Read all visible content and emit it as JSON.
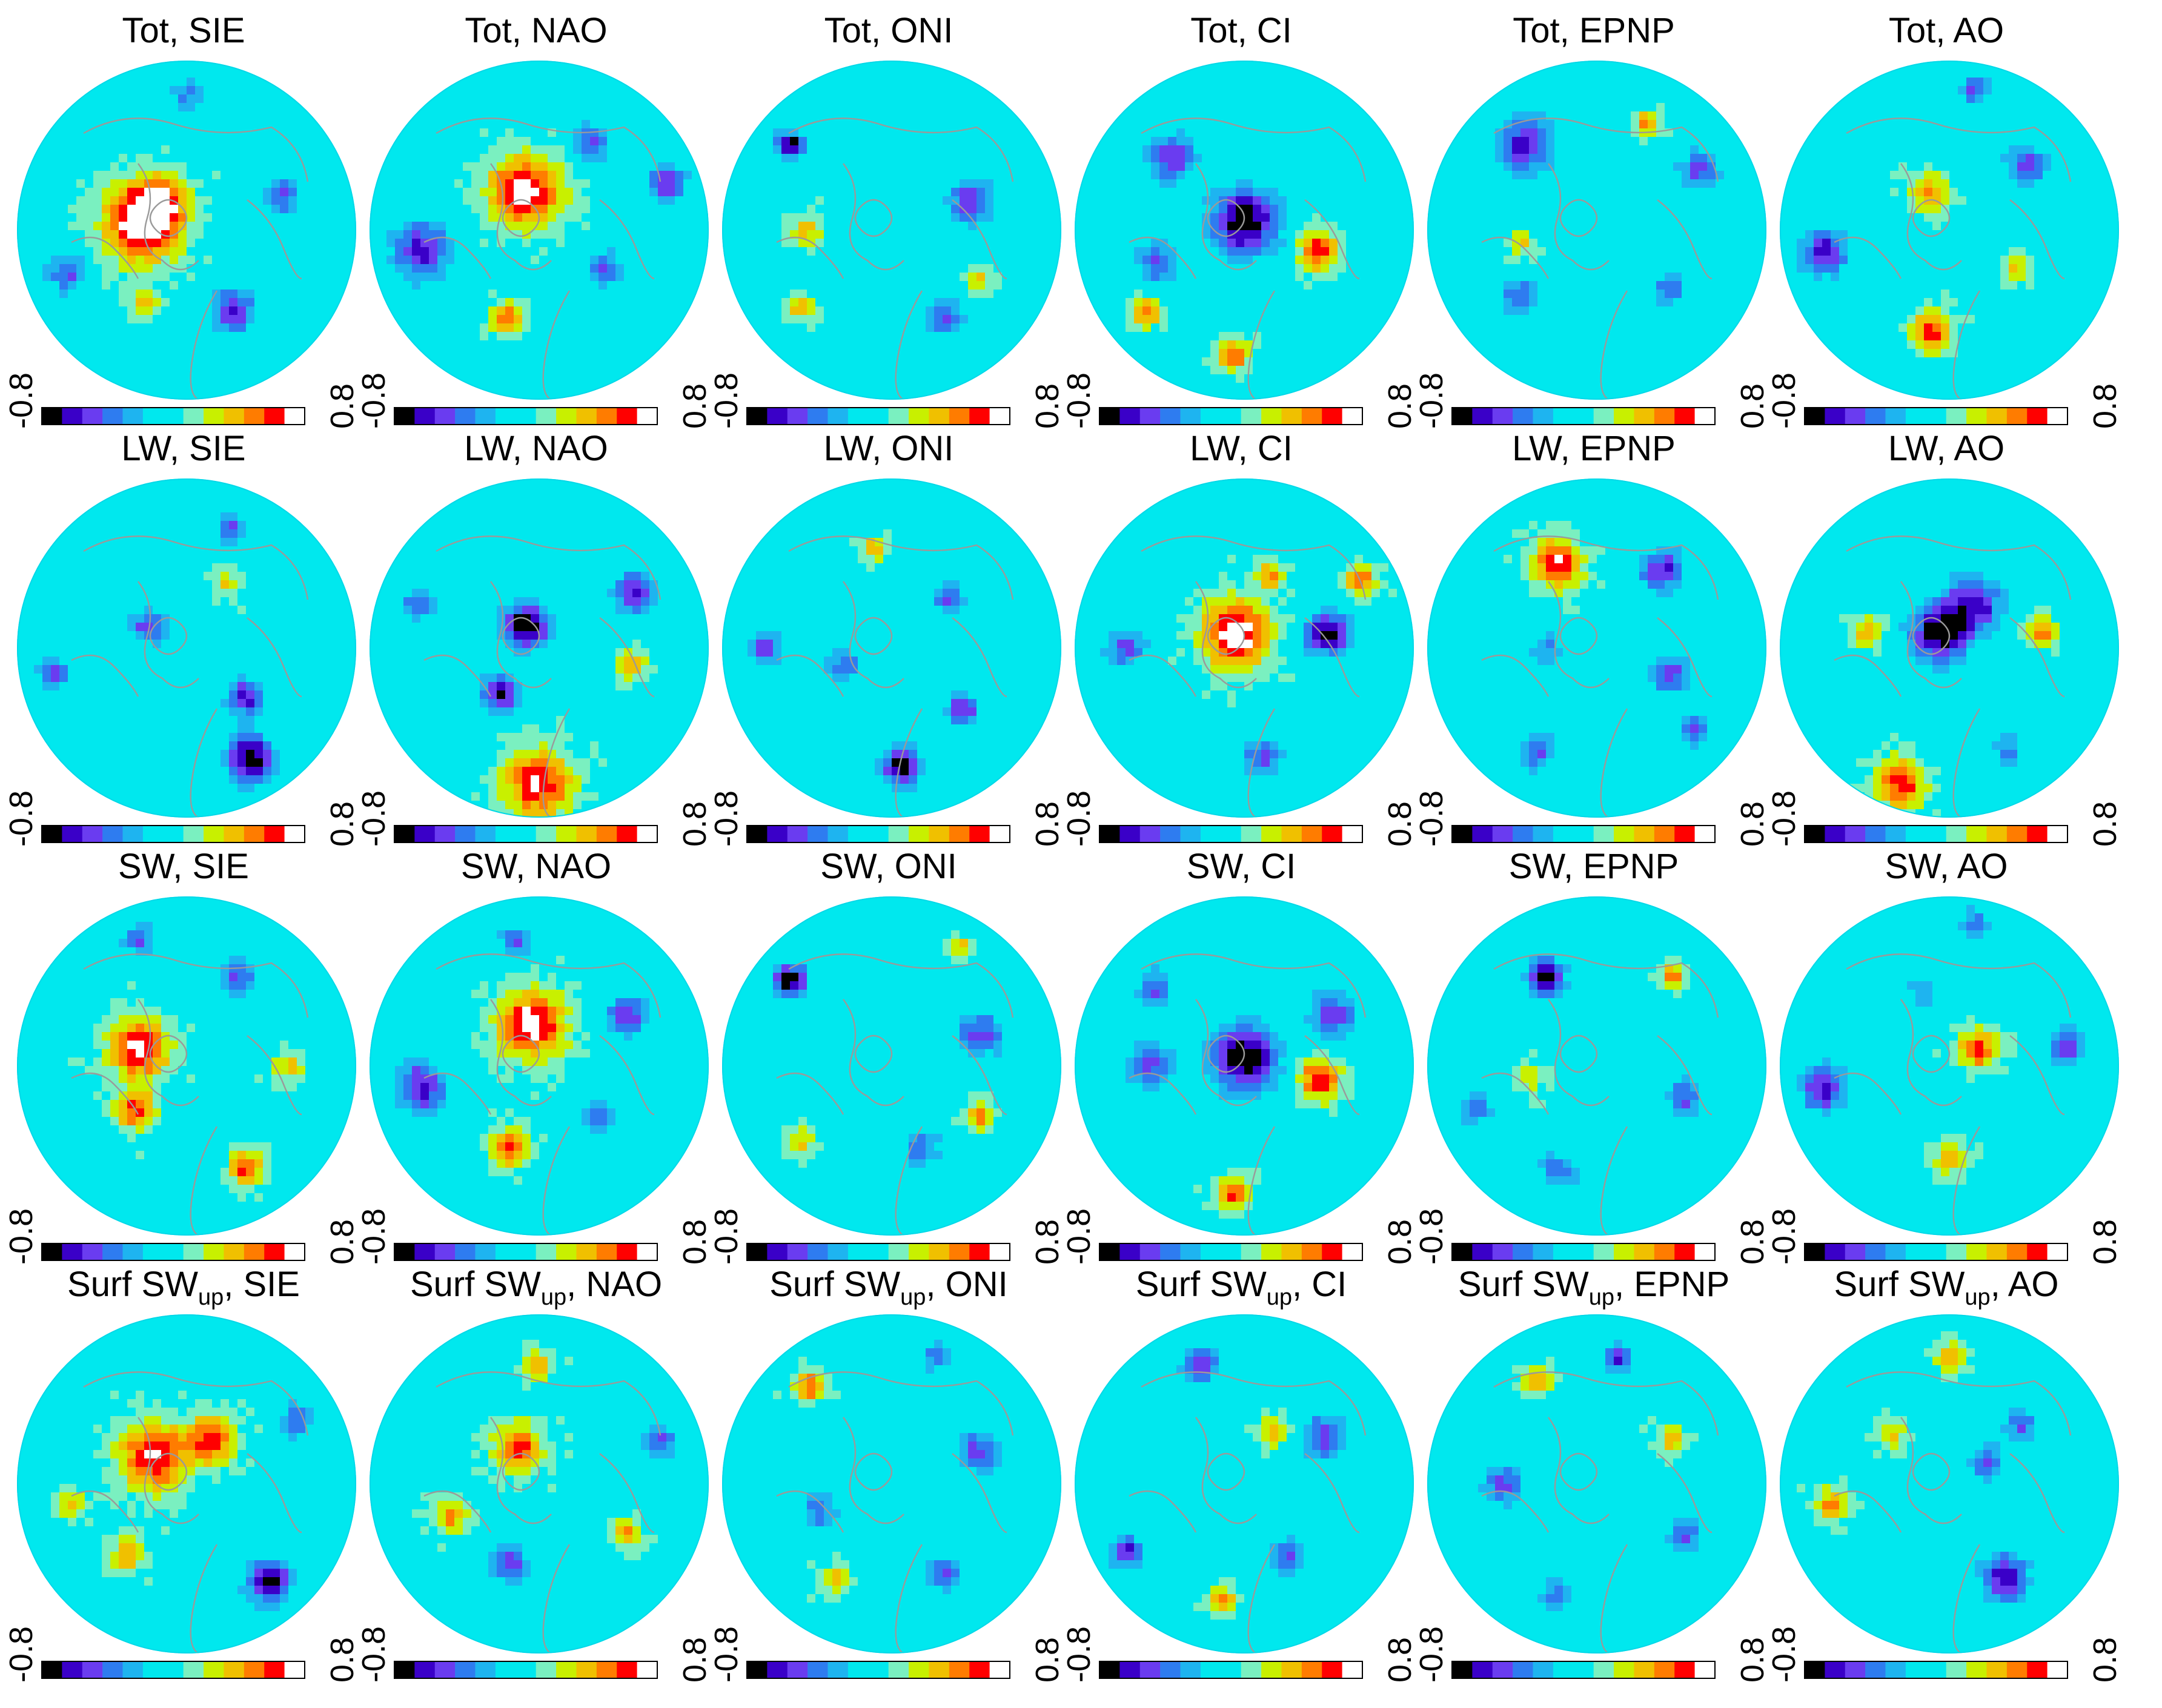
{
  "chart_data": {
    "type": "heatmap",
    "projection": "north-polar-stereographic",
    "layout": {
      "rows": 4,
      "cols": 6
    },
    "row_labels": [
      {
        "name": "Tot",
        "sub": ""
      },
      {
        "name": "LW",
        "sub": ""
      },
      {
        "name": "SW",
        "sub": ""
      },
      {
        "name": "Surf SW",
        "sub": "up"
      }
    ],
    "col_labels": [
      "SIE",
      "NAO",
      "ONI",
      "CI",
      "EPNP",
      "AO"
    ],
    "colorbar": {
      "min_label": "-0.8",
      "max_label": "0.8",
      "range": [
        -0.8,
        0.8
      ],
      "colors": [
        "#000000",
        "#3a00c8",
        "#6a3cf0",
        "#2e7cf0",
        "#1eb4f0",
        "#00e8ee",
        "#00e8ee",
        "#7af0c0",
        "#c8f000",
        "#f0c000",
        "#ff7c00",
        "#ff0000",
        "#ffffff"
      ]
    },
    "coastline_color": "#9a9a9a",
    "panel_fields": {
      "Tot": {
        "SIE": [
          {
            "r": 0.28,
            "a": 175,
            "v": 0.7,
            "s": 0.16
          },
          {
            "r": 0.22,
            "a": 140,
            "v": 0.6,
            "s": 0.12
          },
          {
            "r": 0.55,
            "a": 300,
            "v": -0.55,
            "s": 0.1
          },
          {
            "r": 0.75,
            "a": 200,
            "v": -0.5,
            "s": 0.08
          },
          {
            "r": 0.6,
            "a": 20,
            "v": -0.45,
            "s": 0.08
          },
          {
            "r": 0.5,
            "a": 240,
            "v": 0.4,
            "s": 0.06
          },
          {
            "r": 0.8,
            "a": 90,
            "v": -0.35,
            "s": 0.07
          }
        ],
        "NAO": [
          {
            "r": 0.25,
            "a": 110,
            "v": 0.75,
            "s": 0.15
          },
          {
            "r": 0.55,
            "a": 250,
            "v": 0.5,
            "s": 0.07
          },
          {
            "r": 0.7,
            "a": 190,
            "v": -0.6,
            "s": 0.12
          },
          {
            "r": 0.8,
            "a": 20,
            "v": -0.55,
            "s": 0.08
          },
          {
            "r": 0.45,
            "a": 330,
            "v": -0.45,
            "s": 0.08
          },
          {
            "r": 0.6,
            "a": 60,
            "v": -0.5,
            "s": 0.08
          }
        ],
        "ONI": [
          {
            "r": 0.78,
            "a": 140,
            "v": -0.8,
            "s": 0.06
          },
          {
            "r": 0.5,
            "a": 20,
            "v": -0.5,
            "s": 0.1
          },
          {
            "r": 0.6,
            "a": 300,
            "v": -0.45,
            "s": 0.08
          },
          {
            "r": 0.7,
            "a": 220,
            "v": 0.4,
            "s": 0.06
          },
          {
            "r": 0.5,
            "a": 180,
            "v": 0.35,
            "s": 0.07
          },
          {
            "r": 0.6,
            "a": 330,
            "v": 0.35,
            "s": 0.05
          }
        ],
        "CI": [
          {
            "r": 0.05,
            "a": 90,
            "v": -0.8,
            "s": 0.14
          },
          {
            "r": 0.45,
            "a": 345,
            "v": 0.65,
            "s": 0.08
          },
          {
            "r": 0.75,
            "a": 220,
            "v": 0.55,
            "s": 0.06
          },
          {
            "r": 0.75,
            "a": 265,
            "v": 0.5,
            "s": 0.07
          },
          {
            "r": 0.6,
            "a": 135,
            "v": -0.55,
            "s": 0.1
          },
          {
            "r": 0.55,
            "a": 200,
            "v": -0.45,
            "s": 0.09
          }
        ],
        "EPNP": [
          {
            "r": 0.65,
            "a": 130,
            "v": -0.6,
            "s": 0.12
          },
          {
            "r": 0.7,
            "a": 65,
            "v": 0.5,
            "s": 0.05
          },
          {
            "r": 0.7,
            "a": 30,
            "v": -0.5,
            "s": 0.09
          },
          {
            "r": 0.6,
            "a": 220,
            "v": -0.45,
            "s": 0.08
          },
          {
            "r": 0.55,
            "a": 320,
            "v": -0.4,
            "s": 0.08
          },
          {
            "r": 0.45,
            "a": 190,
            "v": 0.3,
            "s": 0.06
          }
        ],
        "AO": [
          {
            "r": 0.6,
            "a": 260,
            "v": 0.65,
            "s": 0.08
          },
          {
            "r": 0.25,
            "a": 120,
            "v": 0.45,
            "s": 0.08
          },
          {
            "r": 0.75,
            "a": 190,
            "v": -0.6,
            "s": 0.1
          },
          {
            "r": 0.6,
            "a": 40,
            "v": -0.5,
            "s": 0.09
          },
          {
            "r": 0.85,
            "a": 80,
            "v": -0.5,
            "s": 0.06
          },
          {
            "r": 0.45,
            "a": 330,
            "v": 0.35,
            "s": 0.06
          }
        ]
      },
      "LW": {
        "SIE": [
          {
            "r": 0.75,
            "a": 300,
            "v": -0.8,
            "s": 0.1
          },
          {
            "r": 0.45,
            "a": 320,
            "v": -0.6,
            "s": 0.08
          },
          {
            "r": 0.25,
            "a": 150,
            "v": -0.5,
            "s": 0.08
          },
          {
            "r": 0.75,
            "a": 70,
            "v": -0.5,
            "s": 0.06
          },
          {
            "r": 0.8,
            "a": 190,
            "v": -0.45,
            "s": 0.07
          },
          {
            "r": 0.45,
            "a": 60,
            "v": 0.3,
            "s": 0.06
          }
        ],
        "NAO": [
          {
            "r": 0.15,
            "a": 120,
            "v": -0.8,
            "s": 0.1
          },
          {
            "r": 0.35,
            "a": 230,
            "v": -0.7,
            "s": 0.08
          },
          {
            "r": 0.8,
            "a": 270,
            "v": 0.7,
            "s": 0.14
          },
          {
            "r": 0.65,
            "a": 30,
            "v": -0.6,
            "s": 0.09
          },
          {
            "r": 0.55,
            "a": 350,
            "v": 0.45,
            "s": 0.06
          },
          {
            "r": 0.75,
            "a": 160,
            "v": -0.45,
            "s": 0.07
          }
        ],
        "ONI": [
          {
            "r": 0.7,
            "a": 275,
            "v": -0.8,
            "s": 0.08
          },
          {
            "r": 0.55,
            "a": 320,
            "v": -0.6,
            "s": 0.07
          },
          {
            "r": 0.6,
            "a": 100,
            "v": 0.5,
            "s": 0.05
          },
          {
            "r": 0.75,
            "a": 180,
            "v": -0.5,
            "s": 0.07
          },
          {
            "r": 0.45,
            "a": 40,
            "v": -0.45,
            "s": 0.07
          },
          {
            "r": 0.3,
            "a": 200,
            "v": -0.4,
            "s": 0.08
          }
        ],
        "CI": [
          {
            "r": 0.1,
            "a": 120,
            "v": 0.8,
            "s": 0.14
          },
          {
            "r": 0.5,
            "a": 10,
            "v": -0.8,
            "s": 0.09
          },
          {
            "r": 0.8,
            "a": 30,
            "v": 0.6,
            "s": 0.06
          },
          {
            "r": 0.65,
            "a": 280,
            "v": -0.5,
            "s": 0.08
          },
          {
            "r": 0.7,
            "a": 180,
            "v": -0.5,
            "s": 0.08
          },
          {
            "r": 0.45,
            "a": 70,
            "v": 0.45,
            "s": 0.06
          }
        ],
        "EPNP": [
          {
            "r": 0.55,
            "a": 115,
            "v": 0.75,
            "s": 0.1
          },
          {
            "r": 0.6,
            "a": 50,
            "v": -0.6,
            "s": 0.09
          },
          {
            "r": 0.45,
            "a": 340,
            "v": -0.5,
            "s": 0.08
          },
          {
            "r": 0.7,
            "a": 240,
            "v": -0.45,
            "s": 0.08
          },
          {
            "r": 0.75,
            "a": 320,
            "v": -0.45,
            "s": 0.07
          },
          {
            "r": 0.3,
            "a": 180,
            "v": -0.35,
            "s": 0.07
          }
        ],
        "AO": [
          {
            "r": 0.1,
            "a": 120,
            "v": -0.8,
            "s": 0.12
          },
          {
            "r": 0.3,
            "a": 60,
            "v": -0.6,
            "s": 0.12
          },
          {
            "r": 0.85,
            "a": 250,
            "v": 0.65,
            "s": 0.1
          },
          {
            "r": 0.55,
            "a": 10,
            "v": 0.5,
            "s": 0.06
          },
          {
            "r": 0.5,
            "a": 170,
            "v": 0.45,
            "s": 0.06
          },
          {
            "r": 0.7,
            "a": 300,
            "v": -0.4,
            "s": 0.07
          }
        ]
      },
      "SW": {
        "SIE": [
          {
            "r": 0.3,
            "a": 160,
            "v": 0.75,
            "s": 0.12
          },
          {
            "r": 0.4,
            "a": 220,
            "v": 0.6,
            "s": 0.08
          },
          {
            "r": 0.7,
            "a": 300,
            "v": 0.6,
            "s": 0.07
          },
          {
            "r": 0.6,
            "a": 60,
            "v": -0.5,
            "s": 0.08
          },
          {
            "r": 0.8,
            "a": 110,
            "v": -0.45,
            "s": 0.07
          },
          {
            "r": 0.6,
            "a": 0,
            "v": 0.4,
            "s": 0.06
          }
        ],
        "NAO": [
          {
            "r": 0.25,
            "a": 100,
            "v": 0.75,
            "s": 0.14
          },
          {
            "r": 0.5,
            "a": 250,
            "v": 0.6,
            "s": 0.08
          },
          {
            "r": 0.7,
            "a": 190,
            "v": -0.6,
            "s": 0.11
          },
          {
            "r": 0.6,
            "a": 30,
            "v": -0.55,
            "s": 0.09
          },
          {
            "r": 0.45,
            "a": 320,
            "v": -0.4,
            "s": 0.07
          },
          {
            "r": 0.75,
            "a": 100,
            "v": -0.45,
            "s": 0.07
          }
        ],
        "ONI": [
          {
            "r": 0.78,
            "a": 140,
            "v": -0.8,
            "s": 0.07
          },
          {
            "r": 0.55,
            "a": 20,
            "v": -0.5,
            "s": 0.1
          },
          {
            "r": 0.6,
            "a": 330,
            "v": 0.5,
            "s": 0.06
          },
          {
            "r": 0.5,
            "a": 290,
            "v": -0.4,
            "s": 0.08
          },
          {
            "r": 0.7,
            "a": 220,
            "v": 0.35,
            "s": 0.06
          },
          {
            "r": 0.8,
            "a": 60,
            "v": 0.4,
            "s": 0.05
          }
        ],
        "CI": [
          {
            "r": 0.05,
            "a": 90,
            "v": -0.8,
            "s": 0.14
          },
          {
            "r": 0.45,
            "a": 350,
            "v": 0.65,
            "s": 0.09
          },
          {
            "r": 0.75,
            "a": 265,
            "v": 0.55,
            "s": 0.07
          },
          {
            "r": 0.6,
            "a": 30,
            "v": -0.5,
            "s": 0.1
          },
          {
            "r": 0.55,
            "a": 180,
            "v": -0.5,
            "s": 0.1
          },
          {
            "r": 0.7,
            "a": 140,
            "v": -0.45,
            "s": 0.08
          }
        ],
        "EPNP": [
          {
            "r": 0.6,
            "a": 120,
            "v": -0.8,
            "s": 0.08
          },
          {
            "r": 0.7,
            "a": 50,
            "v": 0.5,
            "s": 0.05
          },
          {
            "r": 0.55,
            "a": 340,
            "v": -0.45,
            "s": 0.08
          },
          {
            "r": 0.65,
            "a": 250,
            "v": -0.4,
            "s": 0.08
          },
          {
            "r": 0.75,
            "a": 200,
            "v": -0.4,
            "s": 0.07
          },
          {
            "r": 0.4,
            "a": 190,
            "v": 0.3,
            "s": 0.06
          }
        ],
        "AO": [
          {
            "r": 0.2,
            "a": 30,
            "v": 0.6,
            "s": 0.08
          },
          {
            "r": 0.55,
            "a": 270,
            "v": 0.45,
            "s": 0.07
          },
          {
            "r": 0.75,
            "a": 190,
            "v": -0.6,
            "s": 0.1
          },
          {
            "r": 0.7,
            "a": 10,
            "v": -0.5,
            "s": 0.08
          },
          {
            "r": 0.85,
            "a": 80,
            "v": -0.45,
            "s": 0.06
          },
          {
            "r": 0.45,
            "a": 110,
            "v": -0.35,
            "s": 0.07
          }
        ]
      },
      "Surf SW_up": {
        "SIE": [
          {
            "r": 0.25,
            "a": 140,
            "v": 0.7,
            "s": 0.14
          },
          {
            "r": 0.3,
            "a": 60,
            "v": 0.6,
            "s": 0.1
          },
          {
            "r": 0.75,
            "a": 310,
            "v": -0.75,
            "s": 0.09
          },
          {
            "r": 0.55,
            "a": 230,
            "v": 0.5,
            "s": 0.07
          },
          {
            "r": 0.7,
            "a": 190,
            "v": 0.4,
            "s": 0.06
          },
          {
            "r": 0.75,
            "a": 30,
            "v": -0.4,
            "s": 0.07
          }
        ],
        "NAO": [
          {
            "r": 0.25,
            "a": 120,
            "v": 0.6,
            "s": 0.1
          },
          {
            "r": 0.5,
            "a": 250,
            "v": -0.5,
            "s": 0.08
          },
          {
            "r": 0.6,
            "a": 330,
            "v": 0.45,
            "s": 0.06
          },
          {
            "r": 0.55,
            "a": 200,
            "v": 0.45,
            "s": 0.07
          },
          {
            "r": 0.75,
            "a": 20,
            "v": -0.45,
            "s": 0.07
          },
          {
            "r": 0.7,
            "a": 90,
            "v": 0.4,
            "s": 0.06
          }
        ],
        "ONI": [
          {
            "r": 0.75,
            "a": 130,
            "v": 0.55,
            "s": 0.06
          },
          {
            "r": 0.55,
            "a": 20,
            "v": -0.5,
            "s": 0.09
          },
          {
            "r": 0.6,
            "a": 300,
            "v": -0.45,
            "s": 0.08
          },
          {
            "r": 0.45,
            "a": 200,
            "v": -0.4,
            "s": 0.08
          },
          {
            "r": 0.65,
            "a": 240,
            "v": 0.35,
            "s": 0.06
          },
          {
            "r": 0.8,
            "a": 70,
            "v": -0.4,
            "s": 0.06
          }
        ],
        "CI": [
          {
            "r": 0.75,
            "a": 110,
            "v": -0.55,
            "s": 0.08
          },
          {
            "r": 0.55,
            "a": 30,
            "v": -0.5,
            "s": 0.1
          },
          {
            "r": 0.8,
            "a": 210,
            "v": -0.6,
            "s": 0.07
          },
          {
            "r": 0.5,
            "a": 300,
            "v": -0.45,
            "s": 0.08
          },
          {
            "r": 0.7,
            "a": 260,
            "v": 0.45,
            "s": 0.06
          },
          {
            "r": 0.35,
            "a": 60,
            "v": 0.4,
            "s": 0.06
          }
        ],
        "EPNP": [
          {
            "r": 0.75,
            "a": 80,
            "v": -0.55,
            "s": 0.06
          },
          {
            "r": 0.55,
            "a": 180,
            "v": -0.5,
            "s": 0.08
          },
          {
            "r": 0.6,
            "a": 330,
            "v": -0.45,
            "s": 0.08
          },
          {
            "r": 0.7,
            "a": 120,
            "v": 0.45,
            "s": 0.06
          },
          {
            "r": 0.5,
            "a": 30,
            "v": 0.4,
            "s": 0.06
          },
          {
            "r": 0.7,
            "a": 250,
            "v": -0.4,
            "s": 0.07
          }
        ],
        "AO": [
          {
            "r": 0.65,
            "a": 300,
            "v": -0.65,
            "s": 0.1
          },
          {
            "r": 0.25,
            "a": 30,
            "v": -0.5,
            "s": 0.07
          },
          {
            "r": 0.7,
            "a": 190,
            "v": 0.5,
            "s": 0.07
          },
          {
            "r": 0.75,
            "a": 90,
            "v": 0.45,
            "s": 0.06
          },
          {
            "r": 0.55,
            "a": 40,
            "v": -0.45,
            "s": 0.07
          },
          {
            "r": 0.45,
            "a": 140,
            "v": 0.35,
            "s": 0.06
          }
        ]
      }
    }
  }
}
